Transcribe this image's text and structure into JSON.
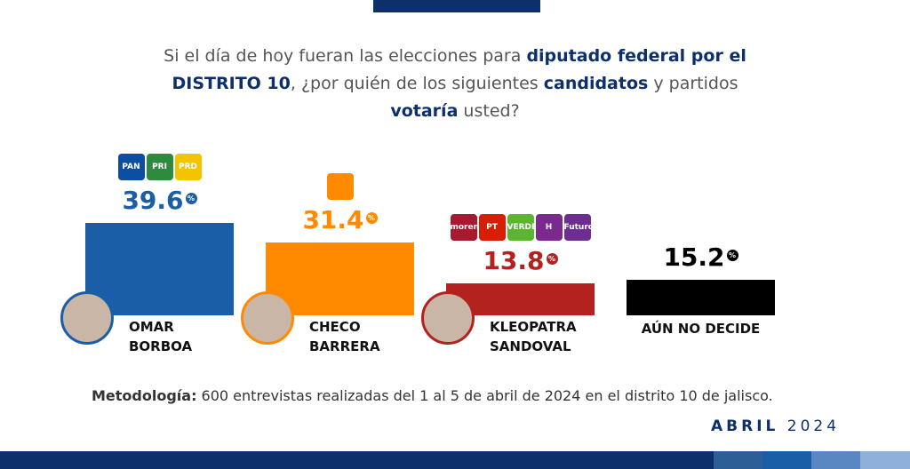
{
  "title_segments": [
    {
      "text": "Si el día de hoy fueran las elecciones para ",
      "bold": false
    },
    {
      "text": "diputado federal por el DISTRITO 10",
      "bold": true
    },
    {
      "text": ", ¿por quién de los siguientes ",
      "bold": false
    },
    {
      "text": "candidatos",
      "bold": true
    },
    {
      "text": " y partidos ",
      "bold": false
    },
    {
      "text": "votaría",
      "bold": true
    },
    {
      "text": " usted?",
      "bold": false
    }
  ],
  "chart_data": {
    "type": "bar",
    "categories": [
      "OMAR BORBOA",
      "CHECO BARRERA",
      "KLEOPATRA SANDOVAL",
      "AÚN NO DECIDE"
    ],
    "values": [
      39.6,
      31.4,
      13.8,
      15.2
    ],
    "colors": [
      "#1a5ea8",
      "#ff8a00",
      "#b3221f",
      "#000000"
    ],
    "value_unit": "%",
    "parties": [
      [
        {
          "label": "PAN",
          "color": "#0b4ea2"
        },
        {
          "label": "PRI",
          "color": "#2e8b3e"
        },
        {
          "label": "PRD",
          "color": "#f2c500"
        }
      ],
      [
        {
          "label": "",
          "color": "#ff8a00"
        }
      ],
      [
        {
          "label": "morena",
          "color": "#a6192e"
        },
        {
          "label": "PT",
          "color": "#d81e05"
        },
        {
          "label": "VERDE",
          "color": "#5cb531"
        },
        {
          "label": "H",
          "color": "#7a2a8c"
        },
        {
          "label": "Futuro",
          "color": "#6e2d91"
        }
      ],
      []
    ]
  },
  "methodology": {
    "label": "Metodología:",
    "text": " 600 entrevistas realizadas del 1 al 5 de abril de 2024 en el distrito 10 de jalisco."
  },
  "date": {
    "month": "ABRIL",
    "year": "2024"
  }
}
